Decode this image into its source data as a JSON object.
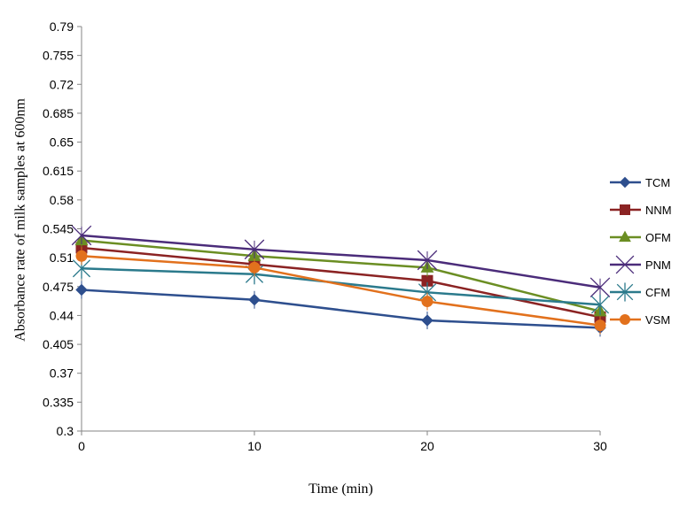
{
  "chart_data": {
    "type": "line",
    "title": "",
    "xlabel": "Time (min)",
    "ylabel": "Absorbance rate of milk samples at 600nm",
    "x": [
      0,
      10,
      20,
      30
    ],
    "x_ticks": [
      "0",
      "10",
      "20",
      "30"
    ],
    "ylim": [
      0.3,
      0.79
    ],
    "y_ticks": [
      "0.3",
      "0.335",
      "0.37",
      "0.405",
      "0.44",
      "0.475",
      "0.51",
      "0.545",
      "0.58",
      "0.615",
      "0.65",
      "0.685",
      "0.72",
      "0.755",
      "0.79"
    ],
    "grid": false,
    "legend_position": "right",
    "series": [
      {
        "name": "TCM",
        "values": [
          0.471,
          0.459,
          0.434,
          0.425
        ],
        "color": "#2E4F8E",
        "marker": "diamond"
      },
      {
        "name": "NNM",
        "values": [
          0.522,
          0.502,
          0.482,
          0.438
        ],
        "color": "#8B2323",
        "marker": "square"
      },
      {
        "name": "OFM",
        "values": [
          0.531,
          0.512,
          0.498,
          0.445
        ],
        "color": "#6B8E23",
        "marker": "triangle"
      },
      {
        "name": "PNM",
        "values": [
          0.537,
          0.52,
          0.507,
          0.474
        ],
        "color": "#4B2C7A",
        "marker": "x"
      },
      {
        "name": "CFM",
        "values": [
          0.497,
          0.49,
          0.468,
          0.453
        ],
        "color": "#2B7A8C",
        "marker": "asterisk"
      },
      {
        "name": "VSM",
        "values": [
          0.512,
          0.498,
          0.457,
          0.428
        ],
        "color": "#E2711D",
        "marker": "circle"
      }
    ]
  }
}
